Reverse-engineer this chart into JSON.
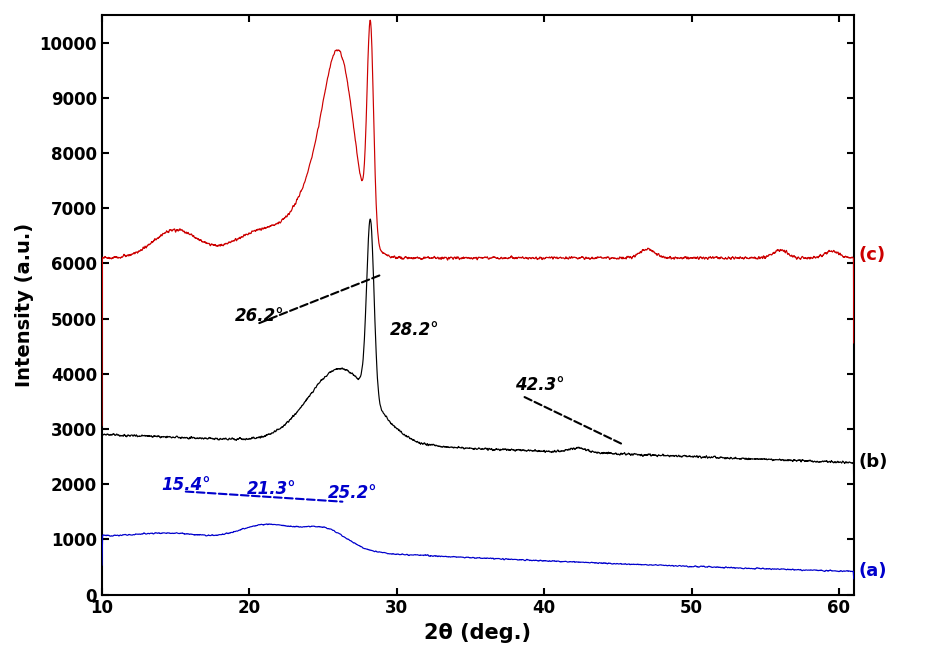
{
  "title": "",
  "xlabel": "2θ (deg.)",
  "ylabel": "Intensity (a.u.)",
  "xlim": [
    10,
    61
  ],
  "ylim": [
    0,
    10500
  ],
  "yticks": [
    0,
    1000,
    2000,
    3000,
    4000,
    5000,
    6000,
    7000,
    8000,
    9000,
    10000
  ],
  "xticks": [
    10,
    20,
    30,
    40,
    50,
    60
  ],
  "curve_a_color": "#0000cc",
  "curve_b_color": "#000000",
  "curve_c_color": "#cc0000",
  "label_a": "(a)",
  "label_b": "(b)",
  "label_c": "(c)",
  "annot_b": [
    "26.2°",
    "28.2°",
    "42.3°"
  ],
  "annot_a": [
    "15.4°",
    "21.3°",
    "25.2°"
  ],
  "figsize": [
    9.4,
    6.58
  ],
  "dpi": 100
}
